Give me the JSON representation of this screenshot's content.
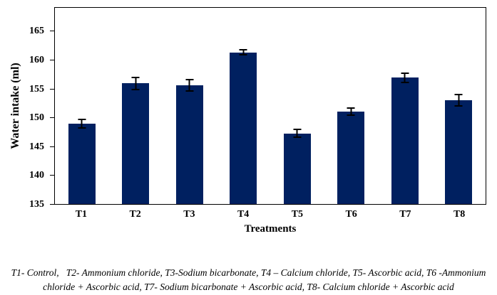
{
  "figure": {
    "caption": "T1- Control,   T2- Ammonium chloride, T3-Sodium bicarbonate, T4 – Calcium chloride, T5- Ascorbic acid, T6 -Ammonium chloride + Ascorbic acid, T7- Sodium bicarbonate + Ascorbic acid, T8- Calcium chloride + Ascorbic acid"
  },
  "chart_data": {
    "type": "bar",
    "title": "",
    "xlabel": "Treatments",
    "ylabel": "Water intake (ml)",
    "categories": [
      "T1",
      "T2",
      "T3",
      "T4",
      "T5",
      "T6",
      "T7",
      "T8"
    ],
    "values": [
      148.9,
      155.9,
      155.6,
      161.3,
      147.2,
      151.0,
      156.9,
      153.0
    ],
    "errors": [
      0.9,
      1.2,
      1.1,
      0.5,
      0.8,
      0.7,
      0.9,
      1.1
    ],
    "ylim": [
      135,
      169
    ],
    "yticks": [
      135,
      140,
      145,
      150,
      155,
      160,
      165
    ],
    "bar_color": "#002060",
    "error_color": "#000000",
    "grid": false,
    "legend": false
  }
}
